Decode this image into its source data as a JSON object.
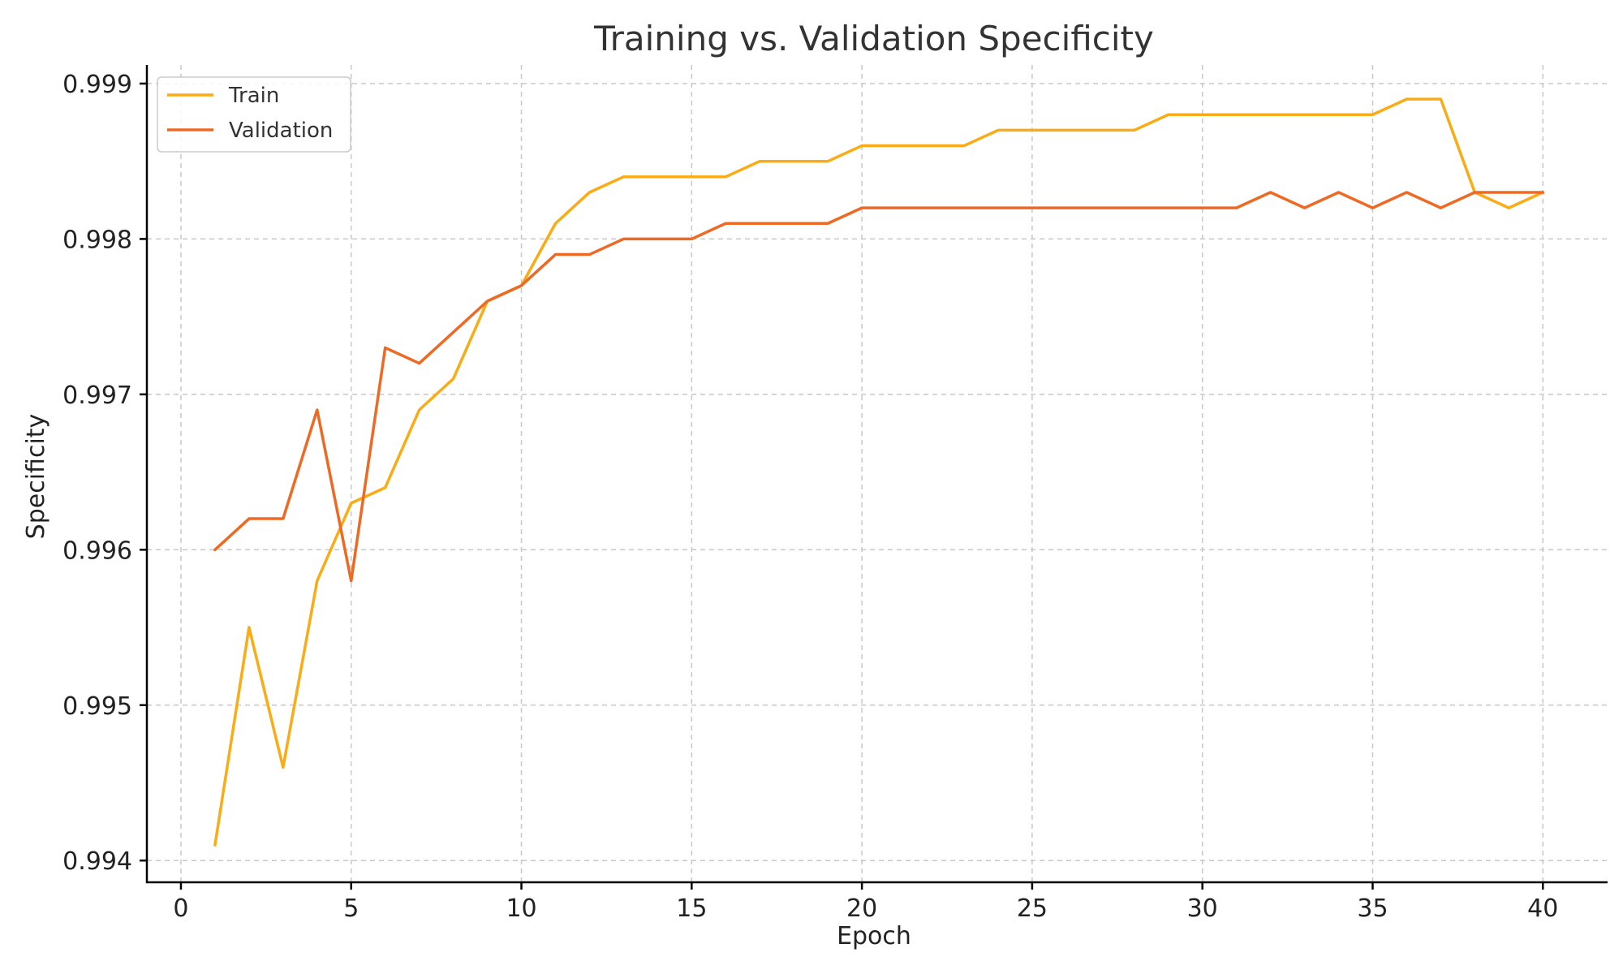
{
  "chart_data": {
    "type": "line",
    "title": "Training vs. Validation Specificity",
    "xlabel": "Epoch",
    "ylabel": "Specificity",
    "xlim": [
      -1,
      41.9
    ],
    "ylim": [
      0.99386,
      0.99912
    ],
    "xticks": [
      0,
      5,
      10,
      15,
      20,
      25,
      30,
      35,
      40
    ],
    "xtick_labels": [
      "0",
      "5",
      "10",
      "15",
      "20",
      "25",
      "30",
      "35",
      "40"
    ],
    "yticks": [
      0.994,
      0.995,
      0.996,
      0.997,
      0.998,
      0.999
    ],
    "ytick_labels": [
      "0.994",
      "0.995",
      "0.996",
      "0.997",
      "0.998",
      "0.999"
    ],
    "grid": true,
    "legend_position": "upper-left",
    "x": [
      1,
      2,
      3,
      4,
      5,
      6,
      7,
      8,
      9,
      10,
      11,
      12,
      13,
      14,
      15,
      16,
      17,
      18,
      19,
      20,
      21,
      22,
      23,
      24,
      25,
      26,
      27,
      28,
      29,
      30,
      31,
      32,
      33,
      34,
      35,
      36,
      37,
      38,
      39,
      40
    ],
    "series": [
      {
        "name": "Train",
        "color": "#F9AC15",
        "values": [
          0.9941,
          0.9955,
          0.9946,
          0.9958,
          0.9963,
          0.9964,
          0.9969,
          0.9971,
          0.9976,
          0.9977,
          0.9981,
          0.9983,
          0.9984,
          0.9984,
          0.9984,
          0.9984,
          0.9985,
          0.9985,
          0.9985,
          0.9986,
          0.9986,
          0.9986,
          0.9986,
          0.9987,
          0.9987,
          0.9987,
          0.9987,
          0.9987,
          0.9988,
          0.9988,
          0.9988,
          0.9988,
          0.9988,
          0.9988,
          0.9988,
          0.9989,
          0.9989,
          0.9983,
          0.9982,
          0.9983
        ]
      },
      {
        "name": "Validation",
        "color": "#EE6A24",
        "values": [
          0.996,
          0.9962,
          0.9962,
          0.9969,
          0.9958,
          0.9973,
          0.9972,
          0.9974,
          0.9976,
          0.9977,
          0.9979,
          0.9979,
          0.998,
          0.998,
          0.998,
          0.9981,
          0.9981,
          0.9981,
          0.9981,
          0.9982,
          0.9982,
          0.9982,
          0.9982,
          0.9982,
          0.9982,
          0.9982,
          0.9982,
          0.9982,
          0.9982,
          0.9982,
          0.9982,
          0.9983,
          0.9982,
          0.9983,
          0.9982,
          0.9983,
          0.9982,
          0.9983,
          0.9983,
          0.9983
        ]
      }
    ]
  }
}
